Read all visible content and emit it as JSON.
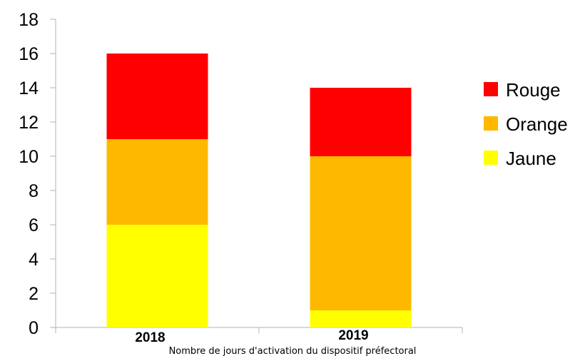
{
  "caption": "Nombre de jours d'activation du dispositif préfectoral",
  "chart_data": {
    "type": "bar",
    "stacked": true,
    "categories": [
      "2018",
      "2019"
    ],
    "series": [
      {
        "name": "Jaune",
        "color": "#ffff00",
        "values": [
          6,
          1
        ]
      },
      {
        "name": "Orange",
        "color": "#ffb800",
        "values": [
          5,
          9
        ]
      },
      {
        "name": "Rouge",
        "color": "#ff0000",
        "values": [
          5,
          4
        ]
      }
    ],
    "ylim": [
      0,
      18
    ],
    "yticks": [
      0,
      2,
      4,
      6,
      8,
      10,
      12,
      14,
      16,
      18
    ],
    "legend": {
      "position": "right",
      "order": [
        "Rouge",
        "Orange",
        "Jaune"
      ]
    },
    "grid": false
  }
}
